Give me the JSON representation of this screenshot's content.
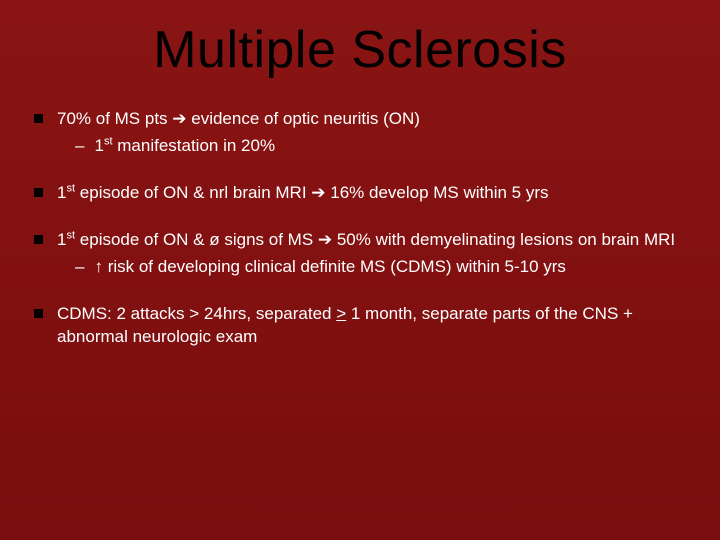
{
  "slide": {
    "title": "Multiple Sclerosis",
    "background_gradient": [
      "#8a1414",
      "#7a0d0d"
    ],
    "title_color": "#000000",
    "text_color": "#ffffff",
    "bullet_marker_color": "#000000",
    "title_fontsize": 52,
    "body_fontsize": 17,
    "bullets": [
      {
        "text_html": "70% of MS pts ➔ evidence of optic neuritis (ON)",
        "sub": [
          {
            "text_html": "1<sup>st</sup> manifestation in 20%"
          }
        ]
      },
      {
        "text_html": "1<sup>st</sup> episode of ON & nrl brain MRI ➔ 16% develop MS within 5 yrs",
        "sub": []
      },
      {
        "text_html": "1<sup>st</sup> episode of ON & ø signs of MS ➔ 50% with demyelinating lesions on brain MRI",
        "sub": [
          {
            "text_html": "↑ risk of developing clinical definite MS (CDMS) within 5-10 yrs"
          }
        ]
      },
      {
        "text_html": "CDMS: 2 attacks > 24hrs, separated <span class=\"underline\">></span> 1 month, separate parts of the CNS + abnormal neurologic exam",
        "sub": []
      }
    ]
  }
}
